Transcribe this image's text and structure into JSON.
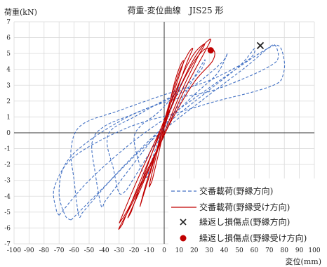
{
  "chart_data": {
    "type": "line",
    "title": "荷重-変位曲線　JIS25 形",
    "ylabel": "荷重(kN)",
    "xlabel": "変位(mm)",
    "xlim": [
      -100,
      100
    ],
    "ylim": [
      -7,
      7
    ],
    "xticks": [
      -100,
      -90,
      -80,
      -70,
      -60,
      -50,
      -40,
      -30,
      -20,
      -10,
      0,
      10,
      20,
      30,
      40,
      50,
      60,
      70,
      80,
      90,
      100
    ],
    "yticks": [
      -7,
      -6,
      -5,
      -4,
      -3,
      -2,
      -1,
      0,
      1,
      2,
      3,
      4,
      5,
      6,
      7
    ],
    "grid": true,
    "legend_position": "bottom-right",
    "series": [
      {
        "name": "交番載荷(野縁方向)",
        "style": "dashed",
        "color": "#4472C4",
        "loops": [
          [
            [
              -10,
              -2.3
            ],
            [
              -5,
              -0.8
            ],
            [
              0,
              0.5
            ],
            [
              5,
              1.6
            ],
            [
              10,
              2.8
            ],
            [
              14,
              3.6
            ],
            [
              12,
              3.2
            ],
            [
              5,
              2.2
            ],
            [
              -5,
              1.2
            ],
            [
              -15,
              0.5
            ],
            [
              -20,
              -0.3
            ],
            [
              -17,
              -1.8
            ],
            [
              -12,
              -2.8
            ],
            [
              -10,
              -2.3
            ]
          ],
          [
            [
              -25,
              -3.6
            ],
            [
              -10,
              -1.3
            ],
            [
              0,
              0.3
            ],
            [
              10,
              1.8
            ],
            [
              20,
              3.5
            ],
            [
              27,
              4.6
            ],
            [
              24,
              3.9
            ],
            [
              10,
              2.6
            ],
            [
              -5,
              1.8
            ],
            [
              -20,
              1.0
            ],
            [
              -35,
              0.2
            ],
            [
              -38,
              -0.7
            ],
            [
              -34,
              -2.2
            ],
            [
              -30,
              -3.8
            ],
            [
              -25,
              -3.6
            ]
          ],
          [
            [
              -40,
              -4.4
            ],
            [
              -20,
              -1.9
            ],
            [
              0,
              0.5
            ],
            [
              20,
              2.4
            ],
            [
              35,
              3.7
            ],
            [
              42,
              5.0
            ],
            [
              38,
              4.4
            ],
            [
              20,
              3.0
            ],
            [
              0,
              2.0
            ],
            [
              -20,
              1.2
            ],
            [
              -40,
              0.4
            ],
            [
              -48,
              -0.6
            ],
            [
              -46,
              -2.5
            ],
            [
              -42,
              -4.6
            ],
            [
              -40,
              -4.4
            ]
          ],
          [
            [
              -55,
              -5.1
            ],
            [
              -30,
              -2.4
            ],
            [
              0,
              0.4
            ],
            [
              30,
              2.7
            ],
            [
              50,
              4.2
            ],
            [
              60,
              5.3
            ],
            [
              56,
              4.6
            ],
            [
              30,
              3.3
            ],
            [
              0,
              2.4
            ],
            [
              -30,
              1.4
            ],
            [
              -55,
              0.5
            ],
            [
              -62,
              -1.0
            ],
            [
              -60,
              -3.0
            ],
            [
              -57,
              -5.2
            ],
            [
              -55,
              -5.1
            ]
          ],
          [
            [
              -62,
              -5.5
            ],
            [
              -40,
              -3.4
            ],
            [
              -20,
              -1.5
            ],
            [
              0,
              0.2
            ],
            [
              30,
              2.4
            ],
            [
              55,
              4.2
            ],
            [
              70,
              5.4
            ],
            [
              74,
              5.5
            ],
            [
              76,
              4.8
            ],
            [
              72,
              4.3
            ],
            [
              55,
              3.5
            ],
            [
              30,
              2.6
            ],
            [
              10,
              2.2
            ],
            [
              -20,
              1.2
            ],
            [
              -50,
              -0.5
            ],
            [
              -66,
              -2.0
            ],
            [
              -70,
              -3.8
            ],
            [
              -66,
              -5.2
            ],
            [
              -62,
              -5.5
            ]
          ],
          [
            [
              -70,
              -5.2
            ],
            [
              -50,
              -3.0
            ],
            [
              -20,
              -0.5
            ],
            [
              10,
              1.5
            ],
            [
              40,
              3.5
            ],
            [
              65,
              5.1
            ],
            [
              76,
              5.5
            ],
            [
              80,
              4.5
            ],
            [
              79,
              3.6
            ],
            [
              75,
              3.1
            ],
            [
              60,
              2.6
            ],
            [
              35,
              2.0
            ],
            [
              10,
              1.3
            ],
            [
              -25,
              0.3
            ],
            [
              -60,
              -1.5
            ],
            [
              -73,
              -3.4
            ],
            [
              -72,
              -4.8
            ],
            [
              -70,
              -5.2
            ]
          ]
        ]
      },
      {
        "name": "交番載荷(野縁受け方向)",
        "style": "solid",
        "color": "#C00000",
        "loops": [
          [
            [
              -8,
              -3.0
            ],
            [
              -3,
              -1.0
            ],
            [
              2,
              1.2
            ],
            [
              7,
              3.2
            ],
            [
              11,
              4.3
            ],
            [
              13,
              4.5
            ],
            [
              10,
              3.6
            ],
            [
              4,
              1.8
            ],
            [
              -3,
              -0.6
            ],
            [
              -8,
              -2.5
            ],
            [
              -10,
              -3.4
            ],
            [
              -8,
              -3.0
            ]
          ],
          [
            [
              -15,
              -4.3
            ],
            [
              -7,
              -1.8
            ],
            [
              2,
              1.4
            ],
            [
              10,
              3.8
            ],
            [
              16,
              5.0
            ],
            [
              19,
              5.3
            ],
            [
              15,
              4.4
            ],
            [
              6,
              2.0
            ],
            [
              -4,
              -0.8
            ],
            [
              -12,
              -3.2
            ],
            [
              -16,
              -4.6
            ],
            [
              -15,
              -4.3
            ]
          ],
          [
            [
              -22,
              -5.0
            ],
            [
              -12,
              -2.3
            ],
            [
              0,
              0.8
            ],
            [
              12,
              3.6
            ],
            [
              20,
              5.0
            ],
            [
              27,
              5.6
            ],
            [
              22,
              4.7
            ],
            [
              10,
              2.3
            ],
            [
              -3,
              -0.7
            ],
            [
              -16,
              -3.6
            ],
            [
              -24,
              -5.3
            ],
            [
              -22,
              -5.0
            ]
          ],
          [
            [
              -28,
              -5.8
            ],
            [
              -14,
              -2.6
            ],
            [
              2,
              1.0
            ],
            [
              16,
              4.0
            ],
            [
              25,
              5.4
            ],
            [
              31,
              5.9
            ],
            [
              27,
              5.1
            ],
            [
              13,
              2.6
            ],
            [
              -4,
              -1.0
            ],
            [
              -20,
              -4.2
            ],
            [
              -30,
              -6.0
            ],
            [
              -28,
              -5.8
            ]
          ],
          [
            [
              -30,
              -5.7
            ],
            [
              -18,
              -3.0
            ],
            [
              0,
              0.7
            ],
            [
              15,
              3.7
            ],
            [
              26,
              5.2
            ],
            [
              33,
              5.2
            ],
            [
              32,
              4.5
            ],
            [
              20,
              3.2
            ],
            [
              5,
              0.8
            ],
            [
              -10,
              -2.1
            ],
            [
              -24,
              -4.8
            ],
            [
              -30,
              -5.7
            ]
          ]
        ]
      }
    ],
    "markers": [
      {
        "name": "繰返し損傷点(野縁方向)",
        "x": 64,
        "y": 5.5,
        "symbol": "x",
        "color": "#222222"
      },
      {
        "name": "繰返し損傷点(野縁受け方向)",
        "x": 31,
        "y": 5.2,
        "symbol": "circle",
        "color": "#C00000"
      }
    ]
  }
}
